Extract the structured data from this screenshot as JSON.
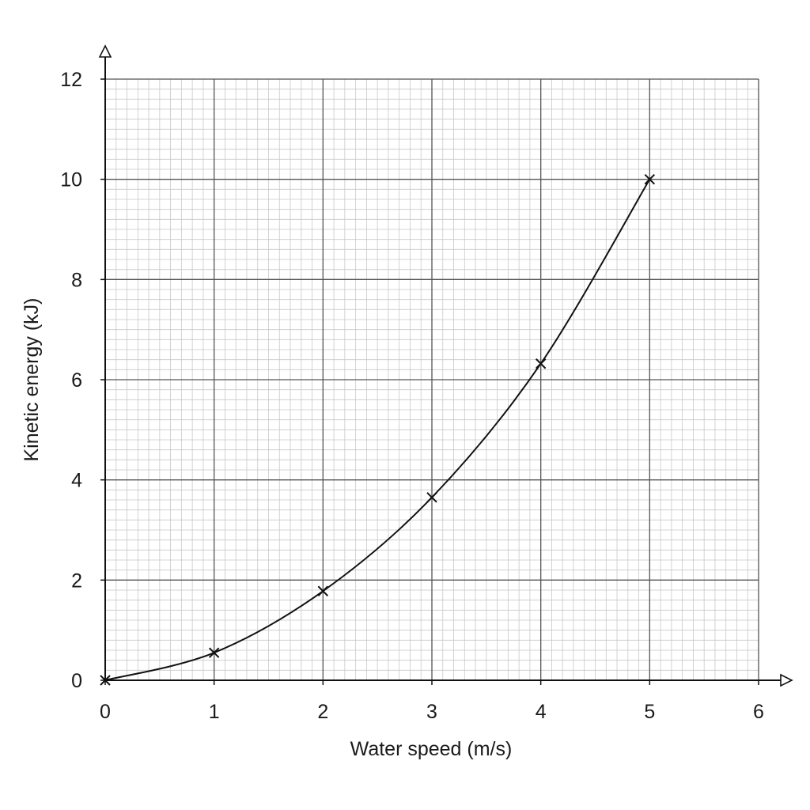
{
  "chart_data": {
    "type": "line",
    "title": "",
    "xlabel": "Water speed (m/s)",
    "ylabel": "Kinetic energy (kJ)",
    "xlim": [
      0,
      6
    ],
    "ylim": [
      0,
      12
    ],
    "x_ticks": [
      0,
      1,
      2,
      3,
      4,
      5,
      6
    ],
    "y_ticks": [
      0,
      2,
      4,
      6,
      8,
      10,
      12
    ],
    "x_tick_labels": [
      "0",
      "1",
      "2",
      "3",
      "4",
      "5",
      "6"
    ],
    "y_tick_labels": [
      "0",
      "2",
      "4",
      "6",
      "8",
      "10",
      "12"
    ],
    "grid": true,
    "minor_grid_per_major": 10,
    "series": [
      {
        "x": [
          0,
          1,
          2,
          3,
          4,
          5
        ],
        "y": [
          0,
          0.55,
          1.78,
          3.65,
          6.32,
          10.0
        ],
        "marker": "x",
        "line": "smooth curve",
        "color": "#111111"
      }
    ],
    "colors": {
      "background": "#ffffff",
      "major_grid": "#555555",
      "minor_grid": "#c8c8c8",
      "axis": "#111111",
      "curve": "#111111"
    }
  }
}
